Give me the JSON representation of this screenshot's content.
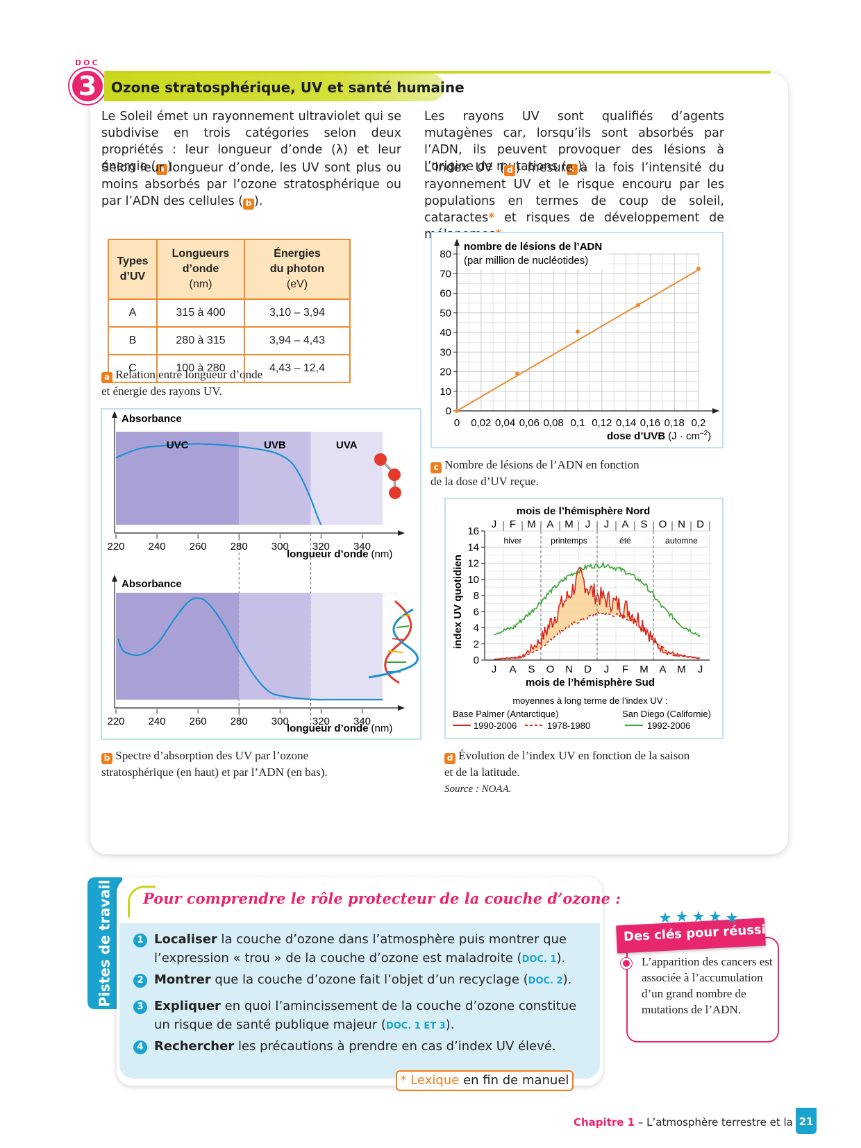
{
  "doc": {
    "label": "DOC",
    "number": "3",
    "title": "Ozone stratosphérique, UV et santé humaine"
  },
  "text": {
    "p1": "Le Soleil émet un rayonnement ultraviolet qui se subdivise en trois catégories selon deux propriétés : leur longueur d’onde (λ) et leur énergie (",
    "p1_end": ").",
    "p2": "Selon leur longueur d’onde, les UV sont plus ou moins absorbés par l’ozone stratosphérique ou par l’ADN des cellules (",
    "p2_end": ").",
    "p3": "Les rayons UV sont qualifiés d’agents mutagènes car, lorsqu’ils sont absorbés par l’ADN, ils peuvent provoquer des lésions à l’origine de mutations (",
    "p3_end": ").",
    "p4_start": "L’index UV (",
    "p4": ") mesure à la fois l’intensité du rayonnement UV et le risque encouru par les populations en termes de coup de soleil, cataractes",
    "p4_mid": " et risques de développement de mélanomes",
    "p4_end": ".",
    "star": "*",
    "ref_a": "a",
    "ref_b": "b",
    "ref_c": "c",
    "ref_d": "d"
  },
  "table": {
    "headers": [
      {
        "lines": [
          "Types",
          "d’UV"
        ]
      },
      {
        "lines": [
          "Longueurs",
          "d’onde",
          "(nm)"
        ]
      },
      {
        "lines": [
          "Énergies",
          "du photon",
          "(eV)"
        ]
      }
    ],
    "rows": [
      [
        "A",
        "315 à 400",
        "3,10 – 3,94"
      ],
      [
        "B",
        "280 à 315",
        "3,94 – 4,43"
      ],
      [
        "C",
        "100 à 280",
        "4,43 – 12,4"
      ]
    ]
  },
  "captions": {
    "a_line1": "Relation entre longueur d’onde",
    "a_line2": "et énergie des rayons UV.",
    "b_line1": "Spectre d’absorption des UV par l’ozone",
    "b_line2": "stratosphérique (en haut) et par l’ADN (en bas).",
    "c_line1": "Nombre de lésions de l’ADN en fonction",
    "c_line2": "de la dose d’UV reçue.",
    "d_line1": "Évolution de l’index UV en fonction de la saison",
    "d_line2": "et de la latitude.",
    "source": "Source : NOAA."
  },
  "chart_data": [
    {
      "type": "line",
      "panel": "b-top",
      "ylabel": "Absorbance",
      "xlabel": "longueur d’onde",
      "xunit": "(nm)",
      "xticks": [
        220,
        240,
        260,
        280,
        300,
        320,
        340
      ],
      "xlim": [
        220,
        350
      ],
      "bands": [
        {
          "name": "UVC",
          "from": 220,
          "to": 280
        },
        {
          "name": "UVB",
          "from": 280,
          "to": 315
        },
        {
          "name": "UVA",
          "from": 315,
          "to": 350
        }
      ],
      "x": [
        220,
        224,
        234,
        250,
        260,
        270,
        280,
        290,
        298,
        305,
        310,
        315,
        318,
        320
      ],
      "y": [
        0.72,
        0.76,
        0.83,
        0.86,
        0.87,
        0.86,
        0.84,
        0.81,
        0.77,
        0.68,
        0.52,
        0.28,
        0.1,
        0.0
      ]
    },
    {
      "type": "line",
      "panel": "b-bottom",
      "ylabel": "Absorbance",
      "xlabel": "longueur d’onde",
      "xunit": "(nm)",
      "xticks": [
        220,
        240,
        260,
        280,
        300,
        320,
        340
      ],
      "xlim": [
        220,
        350
      ],
      "x": [
        221,
        224,
        232,
        240,
        248,
        255,
        260,
        265,
        272,
        280,
        288,
        295,
        302,
        310,
        318,
        325,
        350
      ],
      "y": [
        0.57,
        0.45,
        0.42,
        0.52,
        0.74,
        0.91,
        0.95,
        0.9,
        0.72,
        0.45,
        0.21,
        0.07,
        0.03,
        0.01,
        0.0,
        0.0,
        0.0
      ]
    },
    {
      "type": "line",
      "panel": "c",
      "ylabel": "nombre de lésions de l’ADN",
      "ylabel2": "(par million de nucléotides)",
      "xlabel": "dose d’UVB",
      "xunit": "(J · cm",
      "xunit_sup": "–2",
      "xunit_end": ")",
      "xticks": [
        "0",
        "0,02",
        "0,04",
        "0,06",
        "0,08",
        "0,1",
        "0,12",
        "0,14",
        "0,16",
        "0,18",
        "0,2"
      ],
      "yticks": [
        "0",
        "10",
        "20",
        "30",
        "40",
        "50",
        "60",
        "70",
        "80"
      ],
      "xlim": [
        0,
        0.2
      ],
      "ylim": [
        0,
        80
      ],
      "line": {
        "x": [
          0,
          0.2
        ],
        "y": [
          0,
          72
        ]
      },
      "points": {
        "x": [
          0,
          0.05,
          0.1,
          0.15,
          0.2
        ],
        "y": [
          0,
          19,
          40.5,
          54,
          72.5
        ]
      }
    },
    {
      "type": "line",
      "panel": "d",
      "title_top": "mois de l’hémisphère Nord",
      "title_bottom": "mois de l’hémisphère Sud",
      "ylabel": "index UV quotidien",
      "months_north": [
        "J",
        "F",
        "M",
        "A",
        "M",
        "J",
        "J",
        "A",
        "S",
        "O",
        "N",
        "D"
      ],
      "months_south": [
        "J",
        "A",
        "S",
        "O",
        "N",
        "D",
        "J",
        "F",
        "M",
        "A",
        "M",
        "J"
      ],
      "seasons": [
        "hiver",
        "printemps",
        "été",
        "automne"
      ],
      "yticks": [
        "0",
        "2",
        "4",
        "6",
        "8",
        "10",
        "12",
        "14",
        "16"
      ],
      "ylim": [
        0,
        16
      ],
      "legend_title": "moyennes à long terme de l’index UV :",
      "legend_left": "Base Palmer (Antarctique)",
      "legend_right": "San Diego (Californie)",
      "series": [
        {
          "name": "1990-2006",
          "color": "#d7261e",
          "style": "solid",
          "month": [
            0,
            1.5,
            2.5,
            3.5,
            4.0,
            4.6,
            5.0,
            5.5,
            6.0,
            7.0,
            8.0,
            8.6,
            9.2,
            10.0,
            10.6,
            11.0
          ],
          "value": [
            0.1,
            0.4,
            2.5,
            6.5,
            8.0,
            10.5,
            9.0,
            8.0,
            7.5,
            6.5,
            4.5,
            2.0,
            1.0,
            0.5,
            0.3,
            0.2
          ]
        },
        {
          "name": "1978-1980",
          "color": "#d7261e",
          "style": "dashed",
          "month": [
            0,
            1.5,
            2.5,
            3.5,
            4.5,
            5.5,
            6.5,
            7.5,
            8.5,
            9.5,
            11.0
          ],
          "value": [
            0.1,
            0.3,
            1.5,
            3.5,
            4.8,
            5.8,
            5.6,
            4.8,
            2.5,
            0.6,
            0.2
          ]
        },
        {
          "name": "1992-2006",
          "color": "#38a632",
          "style": "solid",
          "month": [
            0,
            1,
            2,
            3,
            4,
            5,
            6,
            7,
            8,
            9,
            10,
            11
          ],
          "value": [
            3.3,
            4.0,
            6.0,
            8.5,
            10.5,
            11.6,
            11.8,
            11.0,
            9.5,
            6.5,
            4.3,
            3.0
          ]
        }
      ]
    }
  ],
  "work": {
    "tab": "Pistes de travail",
    "heading": "Pour comprendre le rôle protecteur de la couche d’ozone :",
    "tasks": [
      {
        "num": "1",
        "verb": "Localiser",
        "text": " la couche d’ozone dans l’atmosphère puis montrer que l’expression « trou » de la couche d’ozone est maladroite (",
        "ref": "DOC. 1",
        "end": ")."
      },
      {
        "num": "2",
        "verb": "Montrer",
        "text": " que la couche d’ozone fait l’objet d’un recyclage (",
        "ref": "DOC. 2",
        "end": ")."
      },
      {
        "num": "3",
        "verb": "Expliquer",
        "text": " en quoi l’amincissement de la couche d’ozone constitue un risque de santé publique majeur (",
        "ref": "DOC. 1 ET 3",
        "end": ")."
      },
      {
        "num": "4",
        "verb": "Rechercher",
        "text": " les précautions à prendre en cas d’index UV élevé.",
        "ref": "",
        "end": ""
      }
    ],
    "lexique_a": "* Lexique",
    "lexique_b": " en fin de manuel"
  },
  "keys": {
    "title": "Des clés pour réussir",
    "text": "L’apparition des cancers est associée à l’accumulation d’un grand nombre de mutations de l’ADN."
  },
  "footer": {
    "chapter": "Chapitre 1",
    "title": " – L’atmosphère terrestre et la vie",
    "page": "21"
  },
  "colors": {
    "accent_pink": "#e8266e",
    "accent_blue": "#1ba3cf",
    "accent_green": "#c7d61a",
    "orange": "#ef7d1a",
    "uv_band": "#c2bde2"
  }
}
